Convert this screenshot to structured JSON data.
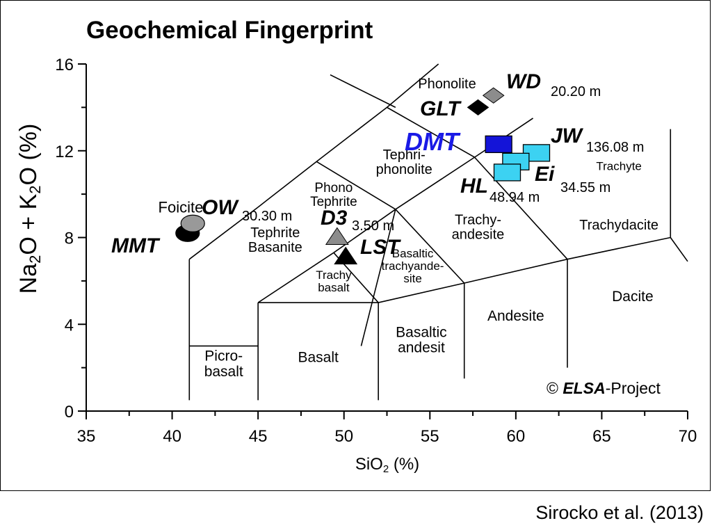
{
  "chart_data": {
    "type": "scatter",
    "title": "Geochemical Fingerprint",
    "xlabel": "SiO",
    "xlabel_sub": "2",
    "xlabel_tail": " (%)",
    "ylabel_parts": [
      "Na",
      "2",
      "O + K",
      "2",
      "O (%)"
    ],
    "xlim": [
      35,
      70
    ],
    "ylim": [
      0,
      16
    ],
    "xticks": [
      "35",
      "40",
      "45",
      "50",
      "55",
      "60",
      "65",
      "70"
    ],
    "yticks": [
      "0",
      "4",
      "8",
      "12",
      "16"
    ],
    "grid": false,
    "tas_field_lines": [
      [
        [
          41,
          0.5
        ],
        [
          41,
          7
        ]
      ],
      [
        [
          41,
          7
        ],
        [
          45,
          9.4
        ]
      ],
      [
        [
          45,
          9.4
        ],
        [
          48.4,
          11.5
        ]
      ],
      [
        [
          48.4,
          11.5
        ],
        [
          52.5,
          14
        ]
      ],
      [
        [
          52.5,
          14
        ],
        [
          57.6,
          11.7
        ]
      ],
      [
        [
          57.6,
          11.7
        ],
        [
          63,
          7
        ]
      ],
      [
        [
          45,
          5
        ],
        [
          45,
          0.5
        ]
      ],
      [
        [
          45,
          5
        ],
        [
          49.4,
          7.3
        ]
      ],
      [
        [
          49.4,
          7.3
        ],
        [
          53,
          9.3
        ]
      ],
      [
        [
          53,
          9.3
        ],
        [
          57.6,
          11.7
        ]
      ],
      [
        [
          57.6,
          11.7
        ],
        [
          61,
          13.5
        ]
      ],
      [
        [
          45,
          5
        ],
        [
          52,
          5
        ]
      ],
      [
        [
          52,
          5
        ],
        [
          52,
          0.5
        ]
      ],
      [
        [
          52,
          5
        ],
        [
          57,
          5.9
        ]
      ],
      [
        [
          57,
          5.9
        ],
        [
          57,
          1.5
        ]
      ],
      [
        [
          57,
          5.9
        ],
        [
          63,
          7
        ]
      ],
      [
        [
          63,
          7
        ],
        [
          63,
          2
        ]
      ],
      [
        [
          63,
          7
        ],
        [
          69,
          8
        ]
      ],
      [
        [
          69,
          8
        ],
        [
          69,
          13
        ]
      ],
      [
        [
          69,
          8
        ],
        [
          70,
          6.9
        ]
      ],
      [
        [
          49.4,
          7.3
        ],
        [
          52,
          5
        ]
      ],
      [
        [
          53,
          9.3
        ],
        [
          57,
          5.9
        ]
      ],
      [
        [
          48.4,
          11.5
        ],
        [
          53,
          9.3
        ]
      ],
      [
        [
          53,
          9.3
        ],
        [
          51,
          3
        ]
      ],
      [
        [
          41,
          3
        ],
        [
          45,
          3
        ]
      ],
      [
        [
          41,
          7
        ],
        [
          45,
          9.4
        ]
      ],
      [
        [
          45,
          9.4
        ],
        [
          52.5,
          14
        ]
      ],
      [
        [
          49.2,
          15.5
        ],
        [
          53,
          14
        ]
      ],
      [
        [
          53,
          9.3
        ],
        [
          50,
          2.5
        ]
      ],
      [
        [
          52.5,
          14
        ],
        [
          55,
          16
        ]
      ]
    ],
    "field_labels": [
      {
        "lines": [
          "Phonolite"
        ],
        "x": 56.0,
        "y": 15.1,
        "size": 20
      },
      {
        "lines": [
          "Foicite"
        ],
        "x": 40.5,
        "y": 9.4,
        "size": 22
      },
      {
        "lines": [
          "Tephri-",
          "phonolite"
        ],
        "x": 53.5,
        "y": 11.5,
        "size": 20
      },
      {
        "lines": [
          "Phono",
          "Tephrite"
        ],
        "x": 49.4,
        "y": 10.0,
        "size": 19
      },
      {
        "lines": [
          "Tephrite",
          "Basanite"
        ],
        "x": 46.0,
        "y": 7.9,
        "size": 20
      },
      {
        "lines": [
          "Trachy-",
          "andesite"
        ],
        "x": 57.8,
        "y": 8.5,
        "size": 20
      },
      {
        "lines": [
          "Trachydacite"
        ],
        "x": 66.0,
        "y": 8.6,
        "size": 20
      },
      {
        "lines": [
          "Trachyte"
        ],
        "x": 66.0,
        "y": 11.3,
        "size": 17
      },
      {
        "lines": [
          "Basaltic",
          "trachyande-",
          "site"
        ],
        "x": 54.0,
        "y": 6.7,
        "size": 17
      },
      {
        "lines": [
          "Trachy",
          "basalt"
        ],
        "x": 49.4,
        "y": 6.0,
        "size": 17
      },
      {
        "lines": [
          "Andesite"
        ],
        "x": 60.0,
        "y": 4.4,
        "size": 21
      },
      {
        "lines": [
          "Dacite"
        ],
        "x": 66.8,
        "y": 5.3,
        "size": 21
      },
      {
        "lines": [
          "Basaltic",
          "andesit"
        ],
        "x": 54.5,
        "y": 3.3,
        "size": 21
      },
      {
        "lines": [
          "Basalt"
        ],
        "x": 48.5,
        "y": 2.5,
        "size": 21
      },
      {
        "lines": [
          "Picro-",
          "basalt"
        ],
        "x": 43.0,
        "y": 2.2,
        "size": 21
      }
    ],
    "samples": [
      {
        "name": "MMT",
        "depth": "",
        "x": 40.9,
        "y": 8.2,
        "marker": "ellipse",
        "color": "#000000"
      },
      {
        "name": "OW",
        "depth": "30.30 m",
        "x": 41.2,
        "y": 8.65,
        "marker": "ellipse",
        "color": "#999999"
      },
      {
        "name": "D3",
        "depth": "3.50 m",
        "x": 49.6,
        "y": 8.0,
        "marker": "triangle",
        "color": "#8c8c8c"
      },
      {
        "name": "LST",
        "depth": "",
        "x": 50.1,
        "y": 7.1,
        "marker": "triangle",
        "color": "#000000"
      },
      {
        "name": "GLT",
        "depth": "",
        "x": 57.8,
        "y": 14.0,
        "marker": "diamond",
        "color": "#000000"
      },
      {
        "name": "WD",
        "depth": "20.20 m",
        "x": 58.7,
        "y": 14.55,
        "marker": "diamond",
        "color": "#8c8c8c"
      },
      {
        "name": "DMT",
        "depth": "",
        "x": 59.0,
        "y": 12.3,
        "marker": "square",
        "color": "#1414d8"
      },
      {
        "name": "JW",
        "depth": "136.08 m",
        "x": 61.2,
        "y": 11.9,
        "marker": "square",
        "color": "#3cd2f2"
      },
      {
        "name": "Ei",
        "depth": "34.55 m",
        "x": 60.0,
        "y": 11.5,
        "marker": "square",
        "color": "#3cd2f2"
      },
      {
        "name": "HL",
        "depth": "48.94 m",
        "x": 59.5,
        "y": 11.0,
        "marker": "square",
        "color": "#3cd2f2"
      }
    ],
    "copyright": {
      "symbol": "©",
      "bold": "ELSA",
      "rest": "-Project"
    }
  },
  "credit": "Sirocko et al. (2013)"
}
